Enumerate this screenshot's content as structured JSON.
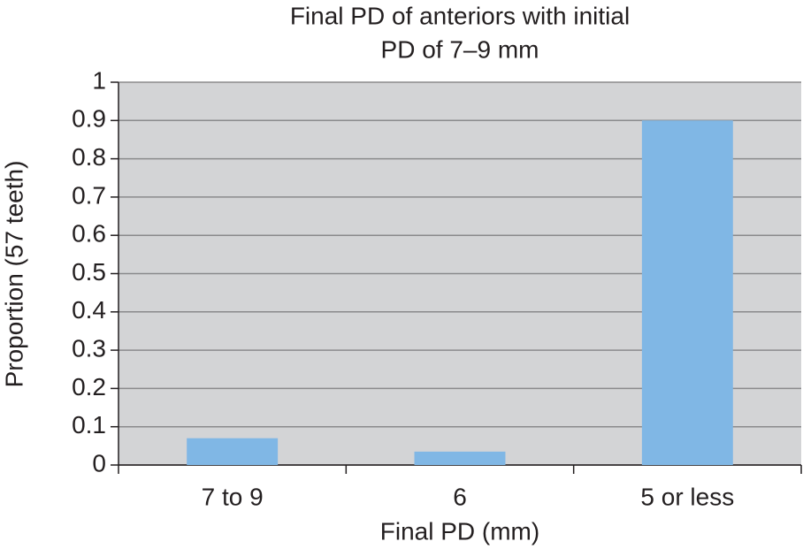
{
  "chart_data": {
    "type": "bar",
    "title": [
      "Final  PD of anteriors with initial",
      "PD of 7–9 mm"
    ],
    "x_label": "Final PD (mm)",
    "y_label": "Proportion (57 teeth)",
    "categories": [
      "7 to 9",
      "6",
      "5 or less"
    ],
    "values": [
      0.07,
      0.035,
      0.9
    ],
    "color": "#80b7e5",
    "background": "#d3d4d6",
    "ylim": [
      0,
      1
    ],
    "yticks": [
      0,
      0.1,
      0.2,
      0.3,
      0.4,
      0.5,
      0.6,
      0.7,
      0.8,
      0.9,
      1
    ],
    "grid": true
  }
}
